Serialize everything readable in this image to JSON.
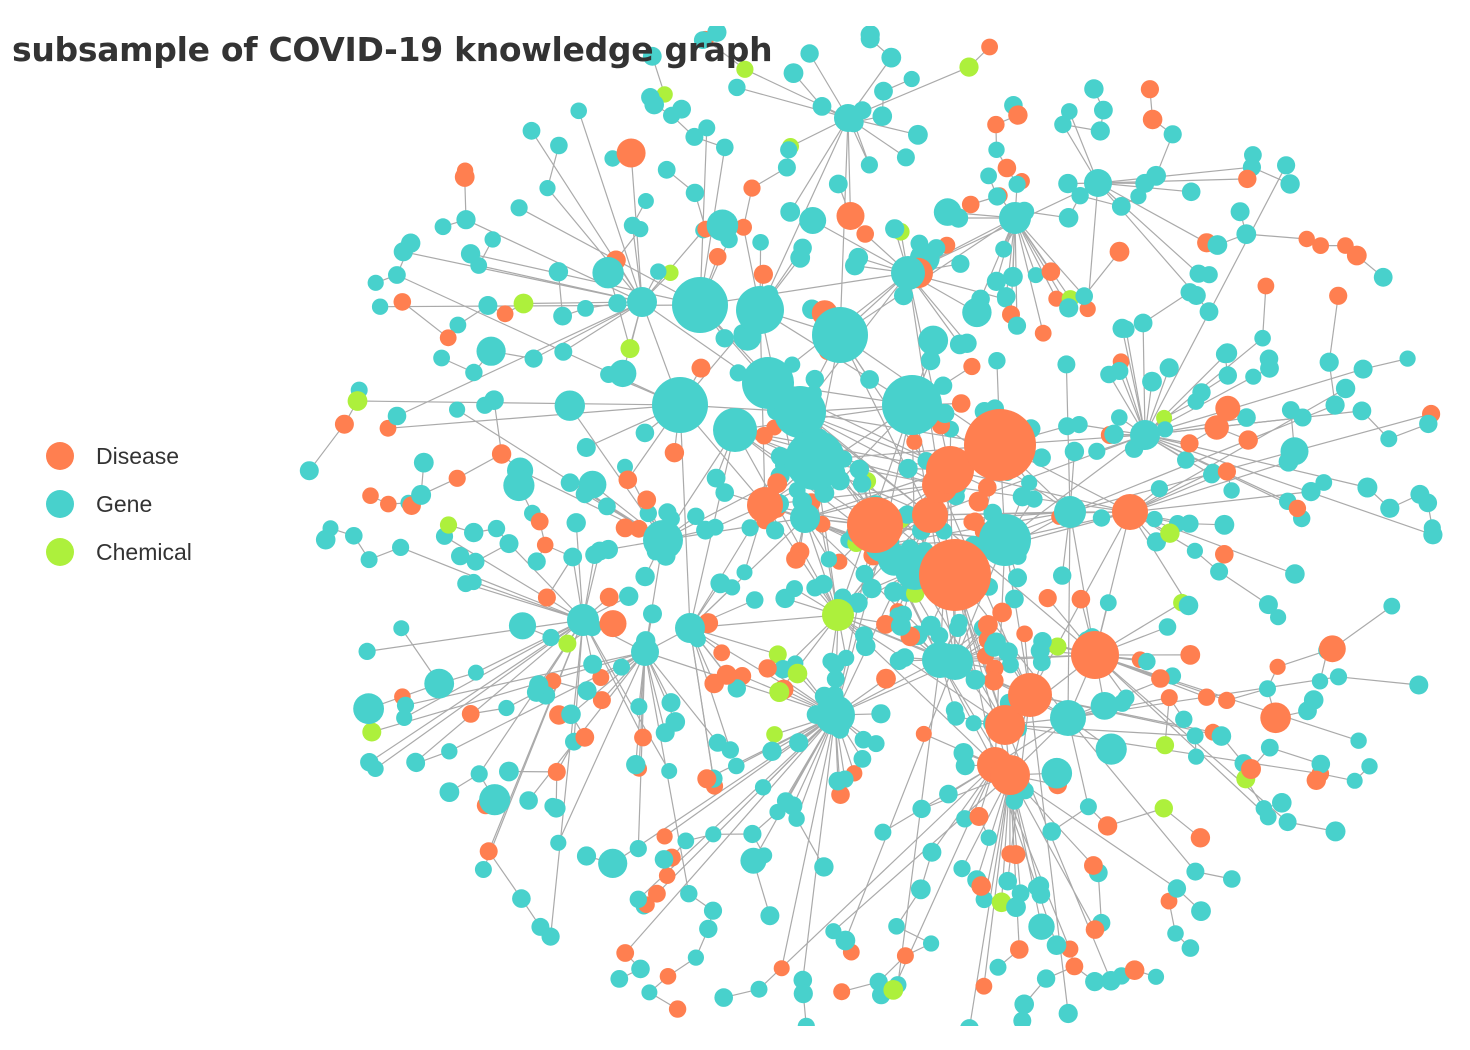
{
  "title": "subsample of COVID-19 knowledge graph",
  "legend": {
    "items": [
      {
        "label": "Disease",
        "color": "#ff7f50"
      },
      {
        "label": "Gene",
        "color": "#48d1cc"
      },
      {
        "label": "Chemical",
        "color": "#adf03c"
      }
    ]
  },
  "graph": {
    "layout": "force-directed radial",
    "edge_color": "#aaaaaa",
    "categories": [
      "Disease",
      "Gene",
      "Chemical"
    ]
  }
}
